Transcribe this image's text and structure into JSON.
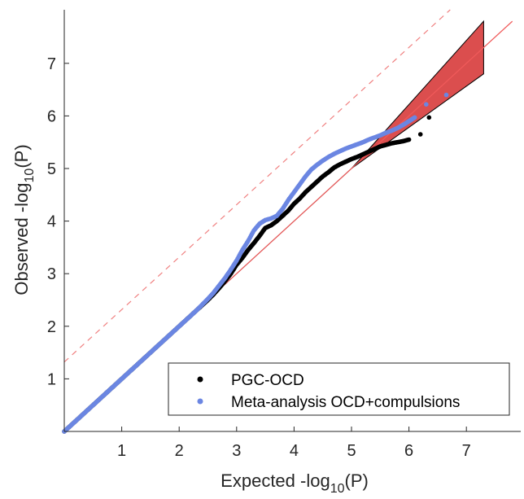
{
  "chart_data": {
    "type": "scatter",
    "title": "",
    "xlabel": {
      "main": "Expected -log",
      "sub": "10",
      "tail": "(P)"
    },
    "ylabel": {
      "main": "Observed -log",
      "sub": "10",
      "tail": "(P)"
    },
    "xlim": [
      0,
      8
    ],
    "ylim": [
      0,
      8
    ],
    "xticks": [
      "1",
      "2",
      "3",
      "4",
      "5",
      "6",
      "7"
    ],
    "yticks": [
      "1",
      "2",
      "3",
      "4",
      "5",
      "6",
      "7"
    ],
    "grid": false,
    "legend_position": "bottom-right",
    "series": [
      {
        "name": "PGC-OCD",
        "color": "#000000",
        "x": [
          0.0,
          0.1,
          0.2,
          0.3,
          0.4,
          0.5,
          0.6,
          0.7,
          0.8,
          0.9,
          1.0,
          1.1,
          1.2,
          1.3,
          1.4,
          1.5,
          1.6,
          1.7,
          1.8,
          1.9,
          2.0,
          2.1,
          2.2,
          2.3,
          2.4,
          2.5,
          2.6,
          2.7,
          2.8,
          2.9,
          3.0,
          3.1,
          3.2,
          3.3,
          3.4,
          3.5,
          3.6,
          3.7,
          3.8,
          3.9,
          4.0,
          4.1,
          4.2,
          4.3,
          4.4,
          4.5,
          4.6,
          4.7,
          4.8,
          4.9,
          5.0,
          5.1,
          5.2,
          5.3,
          5.4,
          5.5,
          5.6,
          5.7,
          5.8,
          5.9,
          6.0,
          6.2,
          6.35
        ],
        "y": [
          0.0,
          0.1,
          0.2,
          0.3,
          0.4,
          0.5,
          0.6,
          0.7,
          0.8,
          0.9,
          1.0,
          1.1,
          1.2,
          1.3,
          1.4,
          1.5,
          1.6,
          1.7,
          1.8,
          1.9,
          2.0,
          2.1,
          2.2,
          2.3,
          2.4,
          2.5,
          2.61,
          2.73,
          2.86,
          3.0,
          3.17,
          3.3,
          3.45,
          3.58,
          3.72,
          3.87,
          3.92,
          4.0,
          4.1,
          4.2,
          4.33,
          4.43,
          4.55,
          4.65,
          4.75,
          4.85,
          4.93,
          5.02,
          5.08,
          5.13,
          5.18,
          5.22,
          5.27,
          5.32,
          5.37,
          5.42,
          5.45,
          5.48,
          5.5,
          5.52,
          5.55,
          5.65,
          5.97
        ]
      },
      {
        "name": "Meta-analysis OCD+compulsions",
        "color": "#6b86e2",
        "x": [
          0.0,
          0.1,
          0.2,
          0.3,
          0.4,
          0.5,
          0.6,
          0.7,
          0.8,
          0.9,
          1.0,
          1.1,
          1.2,
          1.3,
          1.4,
          1.5,
          1.6,
          1.7,
          1.8,
          1.9,
          2.0,
          2.1,
          2.2,
          2.3,
          2.4,
          2.5,
          2.6,
          2.7,
          2.8,
          2.9,
          3.0,
          3.1,
          3.2,
          3.3,
          3.4,
          3.5,
          3.6,
          3.7,
          3.8,
          3.9,
          4.0,
          4.1,
          4.2,
          4.3,
          4.4,
          4.5,
          4.6,
          4.7,
          4.8,
          4.9,
          5.0,
          5.1,
          5.2,
          5.3,
          5.4,
          5.5,
          5.6,
          5.7,
          5.8,
          5.9,
          6.0,
          6.1,
          6.3,
          6.65
        ],
        "y": [
          0.0,
          0.1,
          0.2,
          0.3,
          0.4,
          0.5,
          0.6,
          0.7,
          0.8,
          0.9,
          1.0,
          1.1,
          1.2,
          1.3,
          1.4,
          1.5,
          1.6,
          1.7,
          1.8,
          1.9,
          2.0,
          2.1,
          2.2,
          2.3,
          2.41,
          2.52,
          2.64,
          2.78,
          2.92,
          3.08,
          3.25,
          3.45,
          3.62,
          3.82,
          3.95,
          4.02,
          4.05,
          4.1,
          4.23,
          4.4,
          4.55,
          4.7,
          4.85,
          4.98,
          5.07,
          5.15,
          5.22,
          5.28,
          5.33,
          5.38,
          5.42,
          5.46,
          5.5,
          5.55,
          5.59,
          5.63,
          5.68,
          5.72,
          5.77,
          5.83,
          5.9,
          5.97,
          6.22,
          6.4
        ]
      }
    ],
    "reference_line": {
      "label": "",
      "color": "#f05a5a",
      "points": [
        [
          0,
          0
        ],
        [
          7.8,
          7.8
        ]
      ]
    },
    "significance_line": {
      "label": "",
      "color": "#f08080",
      "style": "dashed",
      "points": [
        [
          0,
          1.32
        ],
        [
          7.0,
          8.3
        ]
      ]
    },
    "confidence_band": {
      "color": "#d94444",
      "outline": "#000000",
      "x": [
        0,
        5.0,
        7.3
      ],
      "lower": [
        0,
        5.0,
        6.8
      ],
      "upper": [
        0,
        5.0,
        7.8
      ]
    }
  }
}
